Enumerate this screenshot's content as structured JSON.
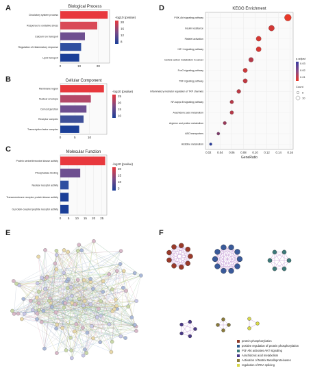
{
  "panels": {
    "A": "A",
    "B": "B",
    "C": "C",
    "D": "D",
    "E": "E",
    "F": "F"
  },
  "chart_data": [
    {
      "id": "A",
      "type": "bar",
      "title": "Biological Process",
      "categories": [
        "Circulatory system process",
        "Response to oxidative stress",
        "Calcium ion transport",
        "Regulation of inflammatory response",
        "Lipid transport"
      ],
      "values": [
        25,
        19.5,
        13,
        11,
        10
      ],
      "colors": [
        "#e8383d",
        "#d94a57",
        "#6e4f90",
        "#2f4fa0",
        "#1b3f98"
      ],
      "xticks": [
        0,
        10,
        20
      ],
      "xlim": [
        0,
        26
      ],
      "legend_title": "-log10 (pvalue)",
      "legend_ticks": [
        "20",
        "16",
        "12",
        "8"
      ]
    },
    {
      "id": "B",
      "type": "bar",
      "title": "Cellular Component",
      "categories": [
        "Membrane region",
        "Nuclear envelope",
        "Cell cell junction",
        "Receptor complex",
        "Transcription factor complex"
      ],
      "values": [
        15,
        10.5,
        9,
        8,
        6.5
      ],
      "colors": [
        "#e8383d",
        "#b44868",
        "#6e4f90",
        "#3e5099",
        "#1b3f98"
      ],
      "xticks": [
        0,
        5,
        10
      ],
      "xlim": [
        0,
        16
      ],
      "legend_title": "-log10 (pvalue)",
      "legend_ticks": [
        "25",
        "20",
        "15",
        "10"
      ]
    },
    {
      "id": "C",
      "type": "bar",
      "title": "Molecular Function",
      "categories": [
        "Protein serine/threonine kinase activity",
        "Phosphatase binding",
        "Nuclear receptor activity",
        "Transmembrane receptor protein kinase activity",
        "G protein-coupled peptide receptor activity"
      ],
      "values": [
        27,
        12,
        5,
        5,
        5
      ],
      "colors": [
        "#e8383d",
        "#6e4f90",
        "#2f4fa0",
        "#1b3f98",
        "#1b3f98"
      ],
      "xticks": [
        0,
        5,
        10,
        15,
        20,
        25
      ],
      "xlim": [
        0,
        28
      ],
      "legend_title": "-log10 (pvalue)",
      "legend_ticks": [
        "20",
        "15",
        "10",
        "5"
      ]
    },
    {
      "id": "D",
      "type": "scatter",
      "title": "KEGG Enrichment",
      "categories": [
        "PI3K-Akt signaling pathway",
        "Insulin resistance",
        "Platelet activation",
        "HIF-1 signaling pathway",
        "Central carbon metabolism in cancer",
        "FoxO signaling pathway",
        "TNF signaling pathway",
        "Inflammatory mediator regulation of TRP channels",
        "NF-kappa B signaling pathway",
        "Arachidonic acid metabolism",
        "Arginine and proline metabolism",
        "ABC transporters",
        "Histidine metabolism"
      ],
      "x": [
        0.156,
        0.128,
        0.106,
        0.106,
        0.093,
        0.083,
        0.083,
        0.072,
        0.06,
        0.06,
        0.048,
        0.037,
        0.024
      ],
      "sizes": [
        15,
        12,
        10,
        10,
        9,
        8,
        8,
        7,
        6,
        6,
        5,
        4,
        3
      ],
      "padj": [
        0.001,
        0.005,
        0.004,
        0.004,
        0.01,
        0.006,
        0.008,
        0.009,
        0.01,
        0.01,
        0.015,
        0.02,
        0.035
      ],
      "xticks": [
        "0.02",
        "0.04",
        "0.06",
        "0.08",
        "0.10",
        "0.12",
        "0.14",
        "0.16"
      ],
      "xlim": [
        0.015,
        0.165
      ],
      "xlabel": "GeneRatio",
      "color_title": "p.adjust",
      "color_ticks": [
        "0.03",
        "0.02",
        "0.01"
      ],
      "size_title": "Count",
      "size_ticks": [
        "5",
        "10"
      ]
    }
  ],
  "legendF": [
    {
      "label": "protein phosphorylation",
      "color": "#8b3a2a"
    },
    {
      "label": "positive regulation of protein phosphorylation",
      "color": "#2c5a8c"
    },
    {
      "label": "PI3'-Akt activates AKT signaling",
      "color": "#3d7a7a"
    },
    {
      "label": "Arachidonic acid metabolism",
      "color": "#4a3a8a"
    },
    {
      "label": "Activation of Matrix Metalloproteinases",
      "color": "#8a7a3a"
    },
    {
      "label": "regulation of RNA splicing",
      "color": "#d8d84a"
    }
  ]
}
